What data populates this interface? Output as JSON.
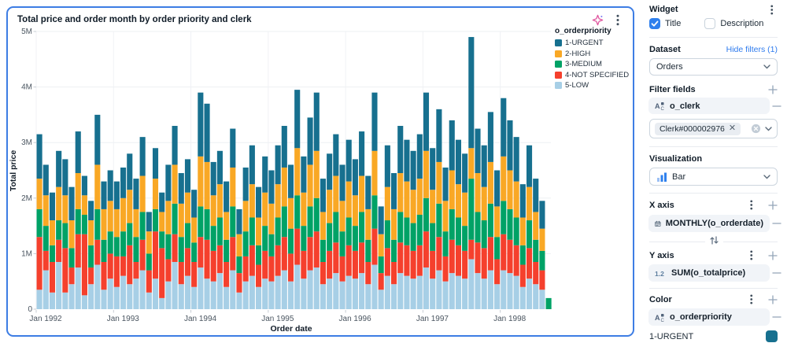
{
  "chart_data": {
    "type": "bar",
    "stacked": true,
    "title": "Total price and order month by order priority and clerk",
    "xlabel": "Order date",
    "ylabel": "Total price",
    "values_unit": "millions",
    "ylim": [
      0,
      5000000
    ],
    "ytick_labels": [
      "0",
      "1M",
      "2M",
      "3M",
      "4M",
      "5M"
    ],
    "xtick_labels": [
      "Jan 1992",
      "Jan 1993",
      "Jan 1994",
      "Jan 1995",
      "Jan 1996",
      "Jan 1997",
      "Jan 1998"
    ],
    "xtick_month_index": [
      0,
      12,
      24,
      36,
      48,
      60,
      72
    ],
    "x_start": "1992-01",
    "n_months": 80,
    "legend_title": "o_orderpriority",
    "legend_order": [
      "1-URGENT",
      "2-HIGH",
      "3-MEDIUM",
      "4-NOT SPECIFIED",
      "5-LOW"
    ],
    "series": [
      {
        "name": "5-LOW",
        "color": "#a7cfe6",
        "values": [
          0.35,
          0.7,
          0.3,
          0.85,
          0.3,
          0.45,
          0.75,
          0.25,
          0.45,
          0.8,
          0.35,
          0.55,
          0.4,
          0.6,
          0.45,
          0.55,
          0.7,
          0.3,
          0.55,
          0.2,
          0.5,
          0.85,
          0.45,
          0.6,
          0.4,
          0.75,
          0.55,
          0.5,
          0.65,
          0.4,
          0.7,
          0.3,
          0.5,
          0.6,
          0.4,
          0.55,
          0.5,
          0.6,
          0.7,
          0.5,
          0.8,
          0.55,
          0.7,
          0.75,
          0.45,
          0.55,
          0.65,
          0.5,
          0.6,
          0.55,
          0.65,
          0.45,
          0.8,
          0.35,
          0.6,
          0.45,
          0.65,
          0.6,
          0.55,
          0.6,
          0.75,
          0.55,
          0.7,
          0.5,
          0.65,
          0.6,
          0.55,
          0.9,
          0.65,
          0.55,
          0.7,
          0.45,
          0.7,
          0.65,
          0.6,
          0.4,
          0.55,
          0.45,
          0.35,
          0
        ]
      },
      {
        "name": "4-NOT SPECIFIED",
        "color": "#f5402d",
        "values": [
          0.95,
          0.35,
          0.55,
          0.4,
          0.8,
          0.3,
          0.6,
          1.1,
          0.3,
          0.45,
          0.5,
          0.45,
          0.55,
          0.35,
          0.7,
          0.3,
          0.55,
          0.4,
          0.85,
          0.9,
          0.4,
          0.5,
          0.4,
          0.5,
          0.45,
          0.55,
          0.7,
          0.55,
          0.5,
          0.45,
          0.6,
          0.35,
          0.45,
          0.55,
          0.4,
          0.5,
          0.45,
          0.55,
          0.6,
          0.5,
          0.65,
          0.5,
          0.6,
          0.65,
          0.4,
          0.5,
          0.55,
          0.45,
          0.55,
          0.5,
          0.55,
          0.4,
          0.65,
          0.3,
          0.5,
          0.4,
          0.55,
          0.55,
          0.5,
          0.55,
          0.65,
          0.5,
          0.6,
          0.45,
          0.6,
          0.55,
          0.5,
          0.35,
          0.55,
          0.55,
          0.6,
          0.45,
          0.65,
          0.6,
          0.55,
          0.4,
          0.55,
          0.4,
          0.35,
          0
        ]
      },
      {
        "name": "3-MEDIUM",
        "color": "#00a266",
        "values": [
          0.5,
          0.45,
          0.3,
          0.35,
          0.45,
          0.35,
          0.45,
          0.35,
          0.4,
          0.55,
          0.4,
          0.4,
          0.35,
          0.45,
          0.4,
          0.45,
          0.5,
          0.3,
          0.4,
          0.3,
          0.45,
          0.55,
          0.45,
          0.45,
          0.35,
          0.55,
          0.55,
          0.45,
          0.5,
          0.4,
          0.55,
          0.3,
          0.45,
          0.5,
          0.35,
          0.45,
          0.4,
          0.5,
          0.55,
          0.45,
          0.6,
          0.45,
          0.55,
          0.6,
          0.4,
          0.5,
          0.55,
          0.45,
          0.5,
          0.45,
          0.55,
          0.4,
          0.6,
          0.3,
          0.5,
          0.4,
          0.55,
          0.5,
          0.5,
          0.55,
          0.6,
          0.5,
          0.6,
          0.45,
          0.55,
          0.5,
          0.45,
          1.1,
          0.55,
          0.5,
          0.6,
          0.4,
          0.6,
          0.55,
          0.5,
          0.35,
          0.5,
          0.4,
          0.35,
          0.2
        ]
      },
      {
        "name": "2-HIGH",
        "color": "#f9a825",
        "values": [
          0.55,
          0.55,
          0.45,
          0.6,
          0.5,
          0.5,
          0.65,
          0.35,
          0.45,
          0.8,
          0.55,
          0.55,
          0.5,
          0.6,
          0.6,
          0.5,
          0.65,
          0.4,
          0.55,
          0.35,
          0.6,
          0.7,
          0.6,
          0.55,
          0.45,
          0.9,
          0.85,
          0.55,
          0.6,
          0.5,
          0.7,
          0.4,
          0.55,
          0.6,
          0.5,
          0.6,
          0.55,
          0.6,
          0.7,
          0.55,
          0.85,
          0.6,
          0.75,
          0.85,
          0.5,
          0.6,
          0.65,
          0.55,
          0.65,
          0.55,
          0.65,
          0.55,
          0.8,
          0.4,
          0.6,
          0.55,
          0.7,
          0.65,
          0.6,
          0.65,
          0.85,
          0.6,
          0.75,
          0.55,
          0.7,
          0.6,
          0.6,
          0.55,
          0.7,
          0.6,
          0.75,
          0.55,
          0.8,
          0.7,
          0.65,
          0.5,
          0.6,
          0.5,
          0.4,
          0
        ]
      },
      {
        "name": "1-URGENT",
        "color": "#17708f",
        "values": [
          0.8,
          0.55,
          0.5,
          0.65,
          0.65,
          0.6,
          0.75,
          0.35,
          0.35,
          0.9,
          0.5,
          0.55,
          0.5,
          0.55,
          0.65,
          0.55,
          0.7,
          0.35,
          0.55,
          0.35,
          0.65,
          0.7,
          0.55,
          0.6,
          0.5,
          1.15,
          1.05,
          0.6,
          0.6,
          0.55,
          0.7,
          0.45,
          0.6,
          0.7,
          0.55,
          0.65,
          0.6,
          0.7,
          0.75,
          0.6,
          1.05,
          0.65,
          0.85,
          1.05,
          0.6,
          0.65,
          0.75,
          0.65,
          0.75,
          0.65,
          0.8,
          0.6,
          1.05,
          0.5,
          0.75,
          0.65,
          0.85,
          0.75,
          0.7,
          0.8,
          1.05,
          0.75,
          0.95,
          0.6,
          0.9,
          0.8,
          0.7,
          2.0,
          0.8,
          0.75,
          0.9,
          0.65,
          1.05,
          0.9,
          0.8,
          0.6,
          0.75,
          0.6,
          0.5,
          0
        ]
      }
    ]
  },
  "panel": {
    "widget": {
      "title": "Widget",
      "title_checkbox": "Title",
      "description_checkbox": "Description"
    },
    "dataset": {
      "title": "Dataset",
      "hide_filters_link": "Hide filters (1)",
      "selected": "Orders"
    },
    "filter_fields": {
      "title": "Filter fields",
      "field": "o_clerk",
      "filter_tag": "Clerk#000002976"
    },
    "visualization": {
      "title": "Visualization",
      "selected": "Bar"
    },
    "x_axis": {
      "title": "X axis",
      "field": "MONTHLY(o_orderdate)"
    },
    "y_axis": {
      "title": "Y axis",
      "field": "SUM(o_totalprice)"
    },
    "color": {
      "title": "Color",
      "field": "o_orderpriority",
      "first_value": "1-URGENT",
      "first_value_color": "#17708f"
    }
  },
  "colors": {
    "card_border": "#3d7de4",
    "checkbox_checked": "#2f80ed",
    "link": "#2e7bee",
    "field_row_bg": "#f1f4f8"
  }
}
